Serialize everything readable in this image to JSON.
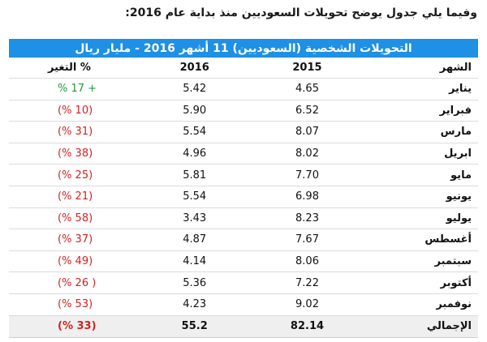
{
  "intro": "وفيما يلي جدول يوضح تحويلات السعوديين منذ بداية عام 2016:",
  "table": {
    "title": "التحويلات الشخصية (السعوديين) 11 أشهر 2016 - مليار ريال",
    "headers": {
      "month": "الشهر",
      "y2015": "2015",
      "y2016": "2016",
      "change": "التغير %"
    },
    "rows": [
      {
        "month": "يناير",
        "y2015": "4.65",
        "y2016": "5.42",
        "change": "% 17 +",
        "status": "pos"
      },
      {
        "month": "فبراير",
        "y2015": "6.52",
        "y2016": "5.90",
        "change": "(% 10)",
        "status": "neg"
      },
      {
        "month": "مارس",
        "y2015": "8.07",
        "y2016": "5.54",
        "change": "(% 31)",
        "status": "neg"
      },
      {
        "month": "ابريل",
        "y2015": "8.02",
        "y2016": "4.96",
        "change": "(% 38)",
        "status": "neg"
      },
      {
        "month": "مايو",
        "y2015": "7.70",
        "y2016": "5.81",
        "change": "(% 25)",
        "status": "neg"
      },
      {
        "month": "يونيو",
        "y2015": "6.98",
        "y2016": "5.54",
        "change": "(% 21)",
        "status": "neg"
      },
      {
        "month": "يوليو",
        "y2015": "8.23",
        "y2016": "3.43",
        "change": "(% 58)",
        "status": "neg"
      },
      {
        "month": "أغسطس",
        "y2015": "7.67",
        "y2016": "4.87",
        "change": "(% 37)",
        "status": "neg"
      },
      {
        "month": "سبتمبر",
        "y2015": "8.06",
        "y2016": "4.14",
        "change": "(% 49)",
        "status": "neg"
      },
      {
        "month": "أكتوبر",
        "y2015": "7.22",
        "y2016": "5.36",
        "change": "(% 26 )",
        "status": "neg"
      },
      {
        "month": "نوفمبر",
        "y2015": "9.02",
        "y2016": "4.23",
        "change": "(% 53)",
        "status": "neg"
      }
    ],
    "total": {
      "month": "الإجمالي",
      "y2015": "82.14",
      "y2016": "55.2",
      "change": "(% 33)",
      "status": "neg"
    }
  },
  "colors": {
    "title_bg": "#1e90e6",
    "positive": "#1f9a3a",
    "negative": "#d62020",
    "total_bg": "#efefef"
  }
}
